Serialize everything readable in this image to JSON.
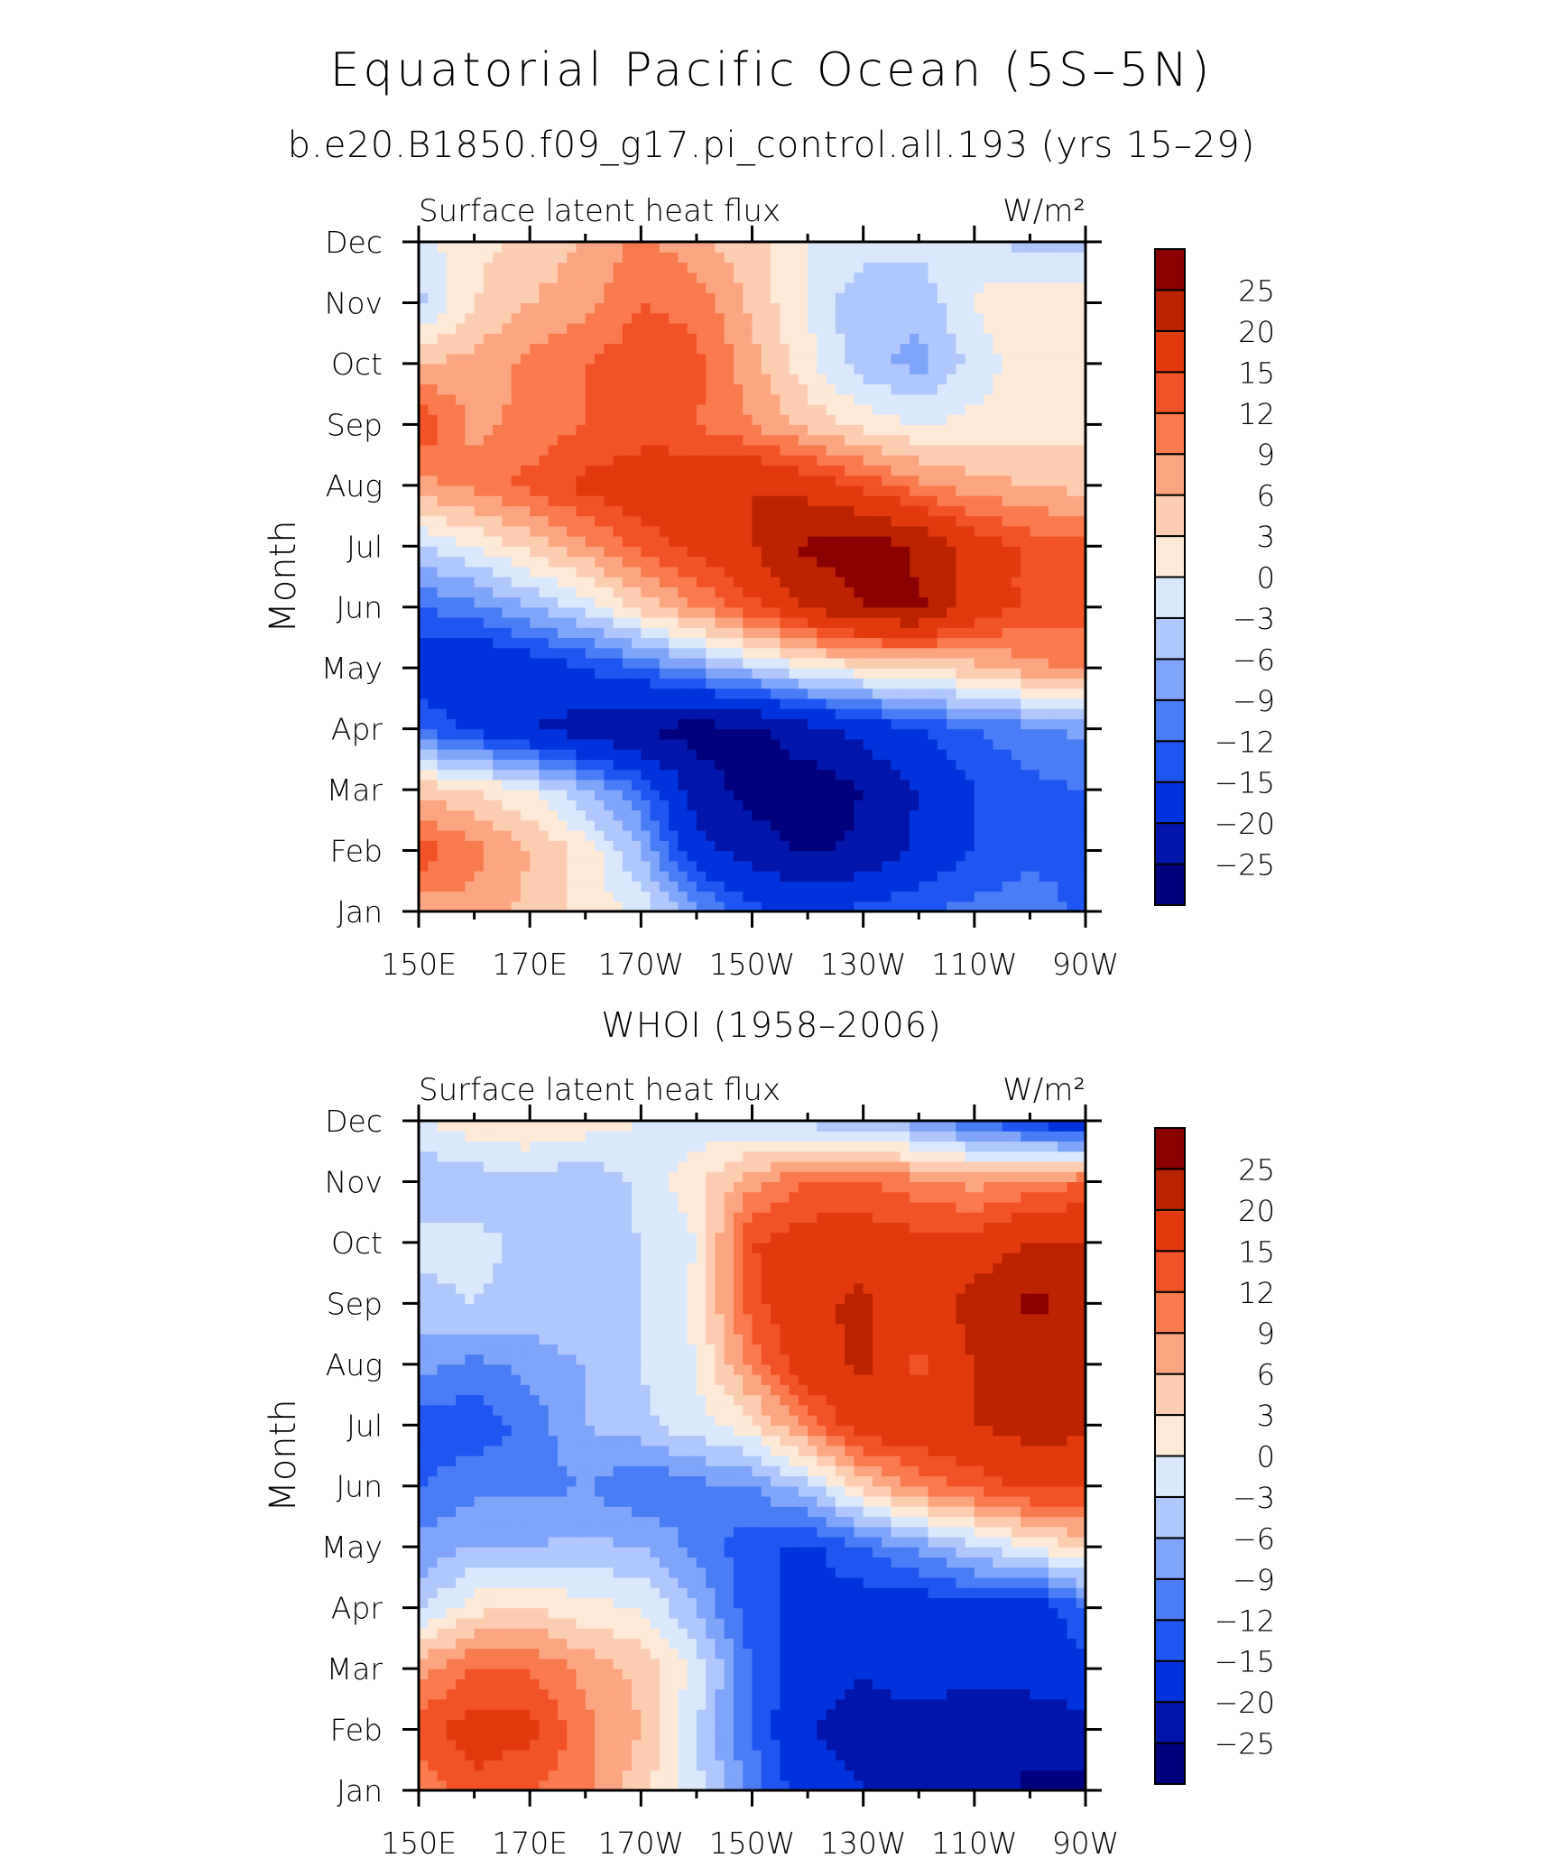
{
  "figure": {
    "title": "Equatorial Pacific Ocean (5S–5N)",
    "subtitle": "b.e20.B1850.f09_g17.pi_control.all.193 (yrs 15–29)"
  },
  "chart_data": [
    {
      "type": "heatmap",
      "title": "",
      "panel_label": "Surface latent heat flux",
      "units": "W/m²",
      "ylabel": "Month",
      "xlabel": "",
      "x_ticks": [
        "150E",
        "170E",
        "170W",
        "150W",
        "130W",
        "110W",
        "90W"
      ],
      "x": [
        150,
        160,
        170,
        180,
        190,
        200,
        210,
        220,
        230,
        240,
        250,
        260,
        270
      ],
      "y_ticks": [
        "Jan",
        "Feb",
        "Mar",
        "Apr",
        "May",
        "Jun",
        "Jul",
        "Aug",
        "Sep",
        "Oct",
        "Nov",
        "Dec"
      ],
      "colorbar_labels": [
        "−25",
        "−20",
        "−15",
        "−12",
        "−9",
        "−6",
        "−3",
        "0",
        "3",
        "6",
        "9",
        "12",
        "15",
        "20",
        "25"
      ],
      "levels": [
        -25,
        -20,
        -15,
        -12,
        -9,
        -6,
        -3,
        0,
        3,
        6,
        9,
        12,
        15,
        20,
        25
      ],
      "colors": [
        "#00007f",
        "#0016aa",
        "#0033dd",
        "#1f55f0",
        "#4a7cf5",
        "#7fa4fa",
        "#afc7fb",
        "#d9e8fc",
        "#fde9d6",
        "#fdcdb2",
        "#fca582",
        "#f97a4e",
        "#f25326",
        "#e23a0c",
        "#ba2200",
        "#8b0000"
      ],
      "z": [
        [
          7,
          8,
          5,
          2,
          -1,
          -8,
          -14,
          -16,
          -14,
          -12,
          -11,
          -10,
          -13
        ],
        [
          14,
          10,
          6,
          2,
          -6,
          -18,
          -22,
          -26,
          -24,
          -19,
          -15,
          -13,
          -13
        ],
        [
          5,
          3,
          0,
          -6,
          -12,
          -22,
          -27,
          -28,
          -25,
          -20,
          -15,
          -13,
          -12
        ],
        [
          -12,
          -16,
          -20,
          -22,
          -25,
          -27,
          -26,
          -22,
          -18,
          -15,
          -12,
          -10,
          -8
        ],
        [
          -18,
          -20,
          -18,
          -15,
          -12,
          -8,
          -4,
          0,
          2,
          3,
          5,
          8,
          10
        ],
        [
          -12,
          -10,
          -6,
          -2,
          4,
          9,
          14,
          20,
          25,
          26,
          18,
          14,
          13
        ],
        [
          -3,
          0,
          4,
          8,
          13,
          16,
          20,
          26,
          28,
          24,
          18,
          14,
          13
        ],
        [
          8,
          10,
          13,
          16,
          18,
          19,
          20,
          18,
          14,
          10,
          7,
          6,
          5
        ],
        [
          15,
          8,
          10,
          12,
          13,
          12,
          9,
          5,
          2,
          0,
          1,
          2,
          2
        ],
        [
          6,
          7,
          10,
          12,
          14,
          13,
          7,
          1,
          -5,
          -7,
          -2,
          2,
          2
        ],
        [
          -4,
          3,
          6,
          8,
          12,
          11,
          5,
          0,
          -6,
          -5,
          0,
          3,
          2
        ],
        [
          -1,
          2,
          4,
          6,
          10,
          7,
          4,
          0,
          -1,
          -2,
          -1,
          -5,
          -4
        ]
      ]
    },
    {
      "type": "heatmap",
      "title": "WHOI (1958–2006)",
      "panel_label": "Surface latent heat flux",
      "units": "W/m²",
      "ylabel": "Month",
      "xlabel": "",
      "x_ticks": [
        "150E",
        "170E",
        "170W",
        "150W",
        "130W",
        "110W",
        "90W"
      ],
      "x": [
        150,
        160,
        170,
        180,
        190,
        200,
        210,
        220,
        230,
        240,
        250,
        260,
        270
      ],
      "y_ticks": [
        "Jan",
        "Feb",
        "Mar",
        "Apr",
        "May",
        "Jun",
        "Jul",
        "Aug",
        "Sep",
        "Oct",
        "Nov",
        "Dec"
      ],
      "colorbar_labels": [
        "−25",
        "−20",
        "−15",
        "−12",
        "−9",
        "−6",
        "−3",
        "0",
        "3",
        "6",
        "9",
        "12",
        "15",
        "20",
        "25"
      ],
      "levels": [
        -25,
        -20,
        -15,
        -12,
        -9,
        -6,
        -3,
        0,
        3,
        6,
        9,
        12,
        15,
        20,
        25
      ],
      "colors": [
        "#00007f",
        "#0016aa",
        "#0033dd",
        "#1f55f0",
        "#4a7cf5",
        "#7fa4fa",
        "#afc7fb",
        "#d9e8fc",
        "#fde9d6",
        "#fdcdb2",
        "#fca582",
        "#f97a4e",
        "#f25326",
        "#e23a0c",
        "#ba2200",
        "#8b0000"
      ],
      "z": [
        [
          10,
          14,
          12,
          10,
          4,
          -2,
          -10,
          -18,
          -20,
          -20,
          -22,
          -26,
          -27
        ],
        [
          14,
          17,
          16,
          10,
          6,
          -3,
          -12,
          -20,
          -22,
          -24,
          -25,
          -23,
          -22
        ],
        [
          8,
          12,
          12,
          8,
          5,
          -1,
          -12,
          -18,
          -20,
          -16,
          -18,
          -18,
          -16
        ],
        [
          -4,
          2,
          3,
          1,
          0,
          -6,
          -14,
          -16,
          -17,
          -18,
          -16,
          -18,
          -12
        ],
        [
          -8,
          -6,
          -6,
          -5,
          -6,
          -10,
          -14,
          -16,
          -12,
          -8,
          -4,
          0,
          4
        ],
        [
          -12,
          -10,
          -10,
          -9,
          -12,
          -10,
          -9,
          -4,
          4,
          10,
          13,
          16,
          16
        ],
        [
          -14,
          -14,
          -11,
          -6,
          -4,
          -1,
          2,
          10,
          18,
          18,
          20,
          22,
          21
        ],
        [
          -8,
          -10,
          -8,
          -6,
          -3,
          0,
          10,
          18,
          21,
          14,
          20,
          22,
          22
        ],
        [
          -4,
          -3,
          -4,
          -3,
          -3,
          1,
          14,
          19,
          21,
          16,
          22,
          26,
          24
        ],
        [
          -2,
          -2,
          -4,
          -5,
          -3,
          0,
          15,
          17,
          18,
          16,
          17,
          20,
          20
        ],
        [
          -6,
          -5,
          -4,
          -6,
          -2,
          2,
          8,
          12,
          12,
          10,
          8,
          10,
          12
        ],
        [
          0,
          2,
          3,
          2,
          0,
          -2,
          -3,
          -4,
          -6,
          -8,
          -12,
          -16,
          -20
        ]
      ]
    }
  ]
}
